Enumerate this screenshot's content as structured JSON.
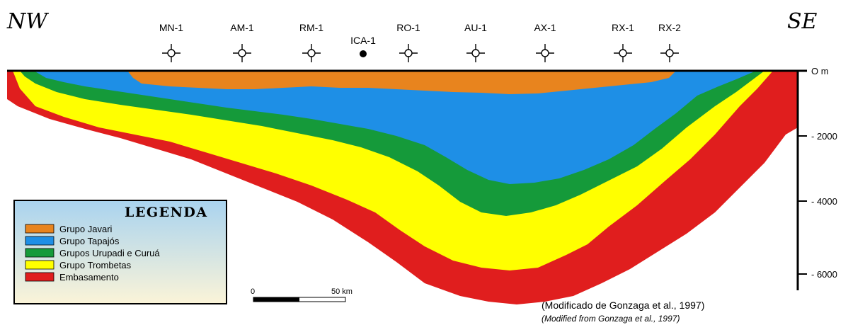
{
  "orientation": {
    "left": "NW",
    "right": "SE"
  },
  "wells": [
    {
      "name": "MN-1",
      "symbol": "well-symbol"
    },
    {
      "name": "AM-1",
      "symbol": "well-symbol"
    },
    {
      "name": "RM-1",
      "symbol": "well-symbol"
    },
    {
      "name": "ICA-1",
      "symbol": "dot"
    },
    {
      "name": "RO-1",
      "symbol": "well-symbol"
    },
    {
      "name": "AU-1",
      "symbol": "well-symbol"
    },
    {
      "name": "AX-1",
      "symbol": "well-symbol"
    },
    {
      "name": "RX-1",
      "symbol": "well-symbol"
    },
    {
      "name": "RX-2",
      "symbol": "well-symbol"
    }
  ],
  "depth_axis": {
    "labels": [
      "O m",
      "- 2000",
      "- 4000",
      "- 6000"
    ],
    "values": [
      0,
      2000,
      4000,
      6000
    ]
  },
  "legend": {
    "title": "LEGENDA",
    "items": [
      {
        "label": "Grupo Javari",
        "color": "#e8841e"
      },
      {
        "label": "Grupo Tapajós",
        "color": "#1e8fe6"
      },
      {
        "label": "Grupos Urupadi e Curuá",
        "color": "#159a3a"
      },
      {
        "label": "Grupo Trombetas",
        "color": "#ffff00"
      },
      {
        "label": "Embasamento",
        "color": "#e01e1e"
      }
    ]
  },
  "scale_bar": {
    "start_label": "0",
    "end_label": "50 km"
  },
  "credits": {
    "pt": "(Modificado de Gonzaga et al., 1997)",
    "en": "(Modified from Gonzaga et al., 1997)"
  }
}
